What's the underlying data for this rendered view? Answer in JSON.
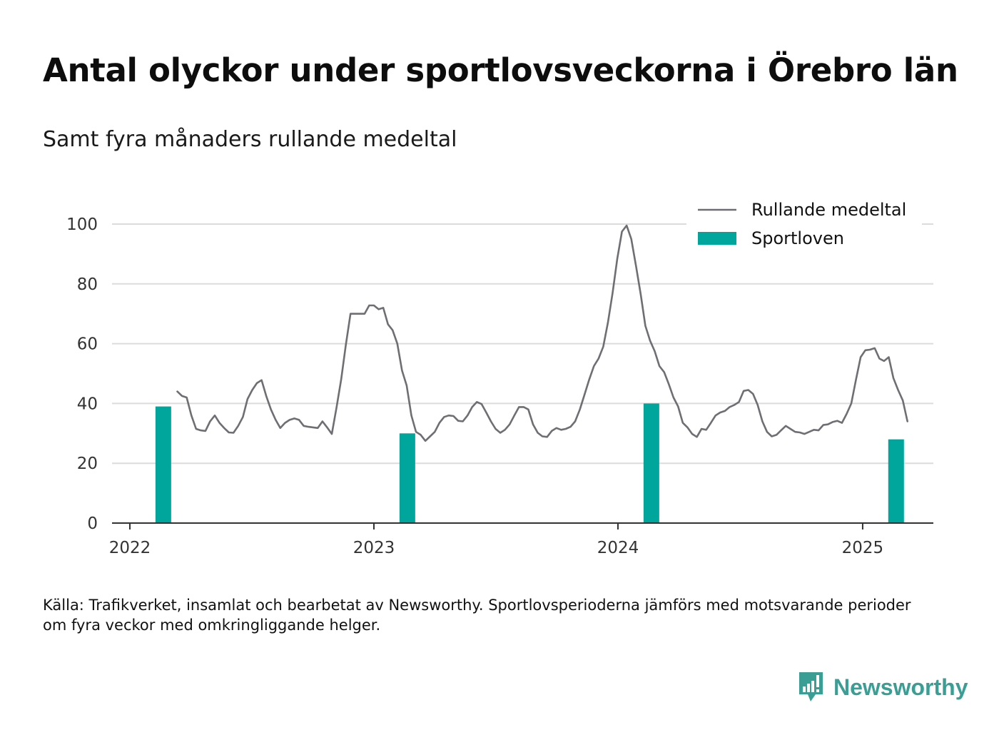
{
  "title": "Antal olyckor under sportlovsveckorna i Örebro län",
  "subtitle": "Samt fyra månaders rullande medeltal",
  "source": "Källa: Trafikverket, insamlat och bearbetat av Newsworthy. Sportlovsperioderna jämförs med motsvarande perioder om fyra veckor med omkringliggande helger.",
  "brand": "Newsworthy",
  "colors": {
    "line": "#6e6e73",
    "bars": "#00a59b",
    "grid": "#dcdcdc",
    "axis": "#333333",
    "brand": "#3a9e94"
  },
  "chart_data": {
    "type": "bar+line",
    "xlim": [
      "2022-01-01",
      "2025-04-20"
    ],
    "ylim": [
      0,
      100
    ],
    "y_ticks": [
      "0",
      "20",
      "40",
      "60",
      "80",
      "100"
    ],
    "x_ticks": [
      {
        "label": "2022",
        "date": "2022-01-01"
      },
      {
        "label": "2023",
        "date": "2023-01-01"
      },
      {
        "label": "2024",
        "date": "2024-01-01"
      },
      {
        "label": "2025",
        "date": "2025-01-01"
      }
    ],
    "grid": true,
    "legend": {
      "position": "top-right",
      "entries": [
        {
          "label": "Rullande medeltal",
          "kind": "line"
        },
        {
          "label": "Sportloven",
          "kind": "bar"
        }
      ]
    },
    "bars": {
      "name": "Sportloven",
      "points": [
        {
          "date": "2022-02-20",
          "value": 39
        },
        {
          "date": "2023-02-20",
          "value": 30
        },
        {
          "date": "2024-02-20",
          "value": 40
        },
        {
          "date": "2025-02-20",
          "value": 28
        }
      ]
    },
    "line": {
      "name": "Rullande medeltal",
      "points": [
        [
          "2022-03-13",
          44
        ],
        [
          "2022-03-20",
          42.5
        ],
        [
          "2022-03-27",
          42
        ],
        [
          "2022-04-03",
          36
        ],
        [
          "2022-04-10",
          31.5
        ],
        [
          "2022-04-17",
          31
        ],
        [
          "2022-04-24",
          30.8
        ],
        [
          "2022-05-01",
          34
        ],
        [
          "2022-05-08",
          36
        ],
        [
          "2022-05-15",
          33.5
        ],
        [
          "2022-05-22",
          31.8
        ],
        [
          "2022-05-29",
          30.3
        ],
        [
          "2022-06-05",
          30.2
        ],
        [
          "2022-06-12",
          32.5
        ],
        [
          "2022-06-19",
          35.5
        ],
        [
          "2022-06-26",
          41.5
        ],
        [
          "2022-07-03",
          44.5
        ],
        [
          "2022-07-10",
          46.8
        ],
        [
          "2022-07-17",
          47.8
        ],
        [
          "2022-07-24",
          42.5
        ],
        [
          "2022-07-31",
          38
        ],
        [
          "2022-08-07",
          34.5
        ],
        [
          "2022-08-14",
          31.8
        ],
        [
          "2022-08-21",
          33.5
        ],
        [
          "2022-08-28",
          34.5
        ],
        [
          "2022-09-04",
          35
        ],
        [
          "2022-09-11",
          34.5
        ],
        [
          "2022-09-18",
          32.5
        ],
        [
          "2022-09-25",
          32.2
        ],
        [
          "2022-10-02",
          32
        ],
        [
          "2022-10-09",
          31.8
        ],
        [
          "2022-10-16",
          34
        ],
        [
          "2022-10-23",
          32
        ],
        [
          "2022-10-30",
          29.8
        ],
        [
          "2022-11-06",
          38.5
        ],
        [
          "2022-11-13",
          48
        ],
        [
          "2022-11-20",
          59.5
        ],
        [
          "2022-11-27",
          70
        ],
        [
          "2022-12-04",
          70
        ],
        [
          "2022-12-11",
          70
        ],
        [
          "2022-12-18",
          70
        ],
        [
          "2022-12-25",
          72.8
        ],
        [
          "2023-01-01",
          72.8
        ],
        [
          "2023-01-08",
          71.5
        ],
        [
          "2023-01-15",
          72
        ],
        [
          "2023-01-22",
          66.5
        ],
        [
          "2023-01-29",
          64.5
        ],
        [
          "2023-02-05",
          60
        ],
        [
          "2023-02-12",
          51
        ],
        [
          "2023-02-19",
          46
        ],
        [
          "2023-02-26",
          36
        ],
        [
          "2023-03-05",
          30.5
        ],
        [
          "2023-03-12",
          29.5
        ],
        [
          "2023-03-19",
          27.5
        ],
        [
          "2023-03-26",
          29
        ],
        [
          "2023-04-02",
          30.5
        ],
        [
          "2023-04-09",
          33.5
        ],
        [
          "2023-04-16",
          35.5
        ],
        [
          "2023-04-23",
          36
        ],
        [
          "2023-04-30",
          35.8
        ],
        [
          "2023-05-07",
          34.2
        ],
        [
          "2023-05-14",
          34
        ],
        [
          "2023-05-21",
          36
        ],
        [
          "2023-05-28",
          38.8
        ],
        [
          "2023-06-04",
          40.5
        ],
        [
          "2023-06-11",
          39.8
        ],
        [
          "2023-06-18",
          37
        ],
        [
          "2023-06-25",
          34
        ],
        [
          "2023-07-02",
          31.5
        ],
        [
          "2023-07-09",
          30.2
        ],
        [
          "2023-07-16",
          31.2
        ],
        [
          "2023-07-23",
          33
        ],
        [
          "2023-07-30",
          36
        ],
        [
          "2023-08-06",
          38.8
        ],
        [
          "2023-08-13",
          38.8
        ],
        [
          "2023-08-20",
          38
        ],
        [
          "2023-08-27",
          33
        ],
        [
          "2023-09-03",
          30.2
        ],
        [
          "2023-09-10",
          29
        ],
        [
          "2023-09-17",
          28.8
        ],
        [
          "2023-09-24",
          30.8
        ],
        [
          "2023-10-01",
          31.8
        ],
        [
          "2023-10-08",
          31.2
        ],
        [
          "2023-10-15",
          31.5
        ],
        [
          "2023-10-22",
          32.2
        ],
        [
          "2023-10-29",
          34
        ],
        [
          "2023-11-05",
          38
        ],
        [
          "2023-11-12",
          43
        ],
        [
          "2023-11-19",
          48
        ],
        [
          "2023-11-26",
          52.5
        ],
        [
          "2023-12-03",
          55
        ],
        [
          "2023-12-10",
          59
        ],
        [
          "2023-12-17",
          67
        ],
        [
          "2023-12-24",
          77
        ],
        [
          "2023-12-31",
          88.5
        ],
        [
          "2024-01-07",
          97.5
        ],
        [
          "2024-01-14",
          99.5
        ],
        [
          "2024-01-21",
          95
        ],
        [
          "2024-01-28",
          86
        ],
        [
          "2024-02-04",
          76.5
        ],
        [
          "2024-02-11",
          66
        ],
        [
          "2024-02-18",
          61
        ],
        [
          "2024-02-25",
          57.5
        ],
        [
          "2024-03-03",
          52.5
        ],
        [
          "2024-03-10",
          50.5
        ],
        [
          "2024-03-17",
          46.5
        ],
        [
          "2024-03-24",
          42
        ],
        [
          "2024-03-31",
          39
        ],
        [
          "2024-04-07",
          33.5
        ],
        [
          "2024-04-14",
          32
        ],
        [
          "2024-04-21",
          29.8
        ],
        [
          "2024-04-28",
          28.8
        ],
        [
          "2024-05-05",
          31.5
        ],
        [
          "2024-05-12",
          31.2
        ],
        [
          "2024-05-19",
          33.5
        ],
        [
          "2024-05-26",
          36
        ],
        [
          "2024-06-02",
          37
        ],
        [
          "2024-06-09",
          37.5
        ],
        [
          "2024-06-16",
          38.8
        ],
        [
          "2024-06-23",
          39.5
        ],
        [
          "2024-06-30",
          40.5
        ],
        [
          "2024-07-07",
          44.2
        ],
        [
          "2024-07-14",
          44.5
        ],
        [
          "2024-07-21",
          43.2
        ],
        [
          "2024-07-28",
          39.5
        ],
        [
          "2024-08-04",
          34
        ],
        [
          "2024-08-11",
          30.5
        ],
        [
          "2024-08-18",
          29
        ],
        [
          "2024-08-25",
          29.5
        ],
        [
          "2024-09-01",
          31
        ],
        [
          "2024-09-08",
          32.5
        ],
        [
          "2024-09-15",
          31.5
        ],
        [
          "2024-09-22",
          30.5
        ],
        [
          "2024-09-29",
          30.3
        ],
        [
          "2024-10-06",
          29.8
        ],
        [
          "2024-10-13",
          30.5
        ],
        [
          "2024-10-20",
          31.2
        ],
        [
          "2024-10-27",
          31
        ],
        [
          "2024-11-03",
          32.8
        ],
        [
          "2024-11-10",
          33
        ],
        [
          "2024-11-17",
          33.8
        ],
        [
          "2024-11-24",
          34.2
        ],
        [
          "2024-12-01",
          33.5
        ],
        [
          "2024-12-08",
          36.5
        ],
        [
          "2024-12-15",
          40
        ],
        [
          "2024-12-22",
          48
        ],
        [
          "2024-12-29",
          55.5
        ],
        [
          "2025-01-05",
          57.8
        ],
        [
          "2025-01-12",
          58
        ],
        [
          "2025-01-19",
          58.5
        ],
        [
          "2025-01-26",
          55
        ],
        [
          "2025-02-02",
          54.2
        ],
        [
          "2025-02-09",
          55.5
        ],
        [
          "2025-02-16",
          48.5
        ],
        [
          "2025-02-23",
          44.5
        ],
        [
          "2025-03-02",
          41
        ],
        [
          "2025-03-09",
          34
        ]
      ]
    }
  }
}
